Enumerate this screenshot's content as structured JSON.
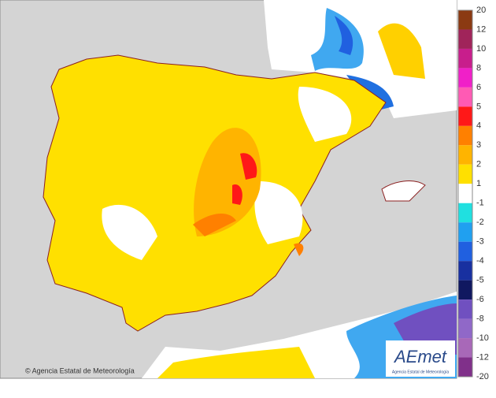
{
  "legend": {
    "labels": [
      "20",
      "12",
      "10",
      "8",
      "6",
      "5",
      "4",
      "3",
      "2",
      "1",
      "-1",
      "-2",
      "-3",
      "-4",
      "-5",
      "-6",
      "-8",
      "-10",
      "-12",
      "-20"
    ],
    "colors": [
      "#8b3a12",
      "#a0245a",
      "#c81e8c",
      "#f020c8",
      "#ff5ab4",
      "#ff1818",
      "#ff8000",
      "#ffb400",
      "#ffe000",
      "#ffffff",
      "#20e0e0",
      "#20a0f0",
      "#2060e0",
      "#1830a0",
      "#101860",
      "#7050c0",
      "#9068c8",
      "#a868b8",
      "#80308a"
    ]
  },
  "copyright": "© Agencia Estatal de Meteorología",
  "logo": {
    "name": "AEmet",
    "subtitle": "Agencia Estatal de Meteorología"
  }
}
